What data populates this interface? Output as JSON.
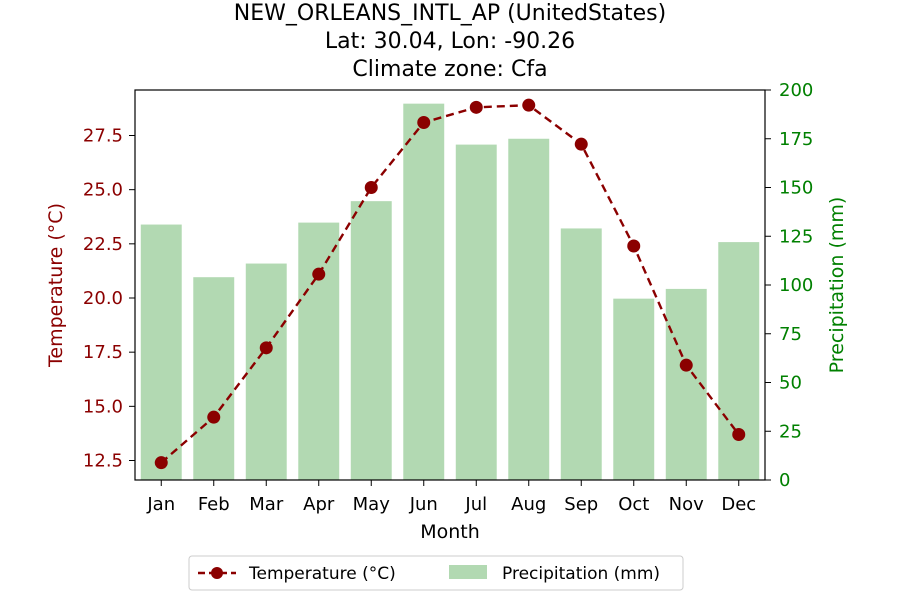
{
  "chart_data": {
    "type": "bar",
    "title_lines": [
      "NEW_ORLEANS_INTL_AP (UnitedStates)",
      "Lat: 30.04, Lon: -90.26",
      "Climate zone: Cfa"
    ],
    "xlabel": "Month",
    "categories": [
      "Jan",
      "Feb",
      "Mar",
      "Apr",
      "May",
      "Jun",
      "Jul",
      "Aug",
      "Sep",
      "Oct",
      "Nov",
      "Dec"
    ],
    "series": [
      {
        "name": "Temperature (°C)",
        "type": "line",
        "axis": "left",
        "color": "#8b0000",
        "values": [
          12.4,
          14.5,
          17.7,
          21.1,
          25.1,
          28.1,
          28.8,
          28.9,
          27.1,
          22.4,
          16.9,
          13.7
        ]
      },
      {
        "name": "Precipitation (mm)",
        "type": "bar",
        "axis": "right",
        "color": "#b2d9b2",
        "values": [
          131,
          104,
          111,
          132,
          143,
          193,
          172,
          175,
          129,
          93,
          98,
          122
        ]
      }
    ],
    "y_left": {
      "label": "Temperature (°C)",
      "color": "#8b0000",
      "range": [
        11.6,
        29.6
      ],
      "ticks": [
        "12.5",
        "15.0",
        "17.5",
        "20.0",
        "22.5",
        "25.0",
        "27.5"
      ]
    },
    "y_right": {
      "label": "Precipitation (mm)",
      "color": "#008000",
      "range": [
        0,
        200
      ],
      "ticks": [
        "0",
        "25",
        "50",
        "75",
        "100",
        "125",
        "150",
        "175",
        "200"
      ]
    },
    "legend": {
      "placement": "bottom-center",
      "entries": [
        "Temperature (°C)",
        "Precipitation (mm)"
      ]
    },
    "grid": false
  }
}
